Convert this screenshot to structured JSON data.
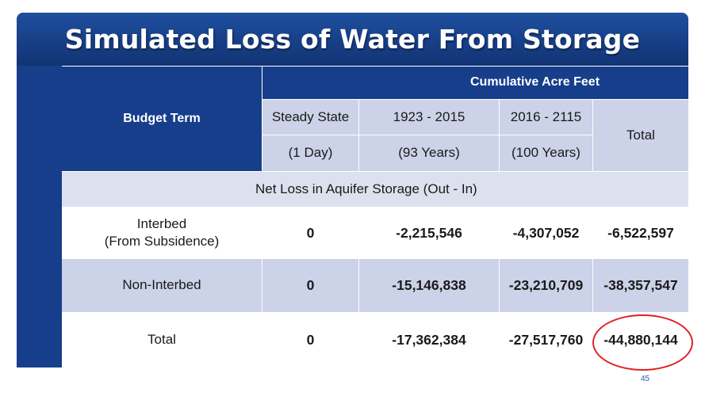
{
  "title": "Simulated Loss of Water From Storage",
  "header": {
    "budget_term": "Budget Term",
    "cumulative": "Cumulative Acre Feet",
    "columns": [
      {
        "period": "Steady State",
        "duration": "(1 Day)"
      },
      {
        "period": "1923 - 2015",
        "duration": "(93 Years)"
      },
      {
        "period": "2016 - 2115",
        "duration": "(100 Years)"
      }
    ],
    "total": "Total"
  },
  "section_label": "Net Loss in Aquifer Storage (Out - In)",
  "rows": [
    {
      "term_line1": "Interbed",
      "term_line2": "(From Subsidence)",
      "values": [
        "0",
        "-2,215,546",
        "-4,307,052",
        "-6,522,597"
      ]
    },
    {
      "term_line1": "Non-Interbed",
      "term_line2": "",
      "values": [
        "0",
        "-15,146,838",
        "-23,210,709",
        "-38,357,547"
      ]
    },
    {
      "term_line1": "Total",
      "term_line2": "",
      "values": [
        "0",
        "-17,362,384",
        "-27,517,760",
        "-44,880,144"
      ]
    }
  ],
  "highlight": {
    "color": "#e02020"
  },
  "page_number": "45"
}
